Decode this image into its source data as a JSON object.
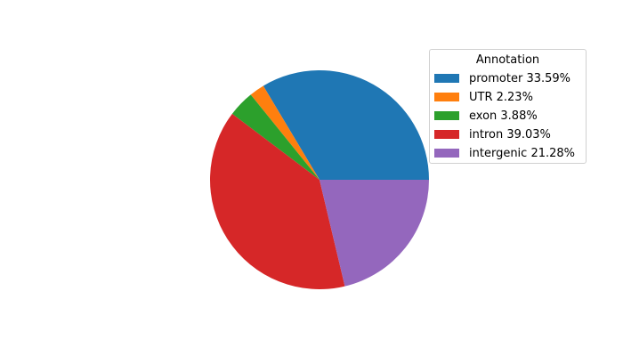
{
  "chart_data": {
    "type": "pie",
    "title": "",
    "start_angle_deg": 0,
    "direction": "counterclockwise",
    "slices": [
      {
        "label": "promoter",
        "value": 33.59,
        "legend": "promoter 33.59%",
        "color": "#1f77b4"
      },
      {
        "label": "UTR",
        "value": 2.23,
        "legend": "UTR 2.23%",
        "color": "#ff7f0e"
      },
      {
        "label": "exon",
        "value": 3.88,
        "legend": "exon 3.88%",
        "color": "#2ca02c"
      },
      {
        "label": "intron",
        "value": 39.03,
        "legend": "intron 39.03%",
        "color": "#d62728"
      },
      {
        "label": "intergenic",
        "value": 21.28,
        "legend": "intergenic 21.28%",
        "color": "#9467bd"
      }
    ],
    "legend": {
      "title": "Annotation",
      "placement": "upper-right"
    }
  }
}
